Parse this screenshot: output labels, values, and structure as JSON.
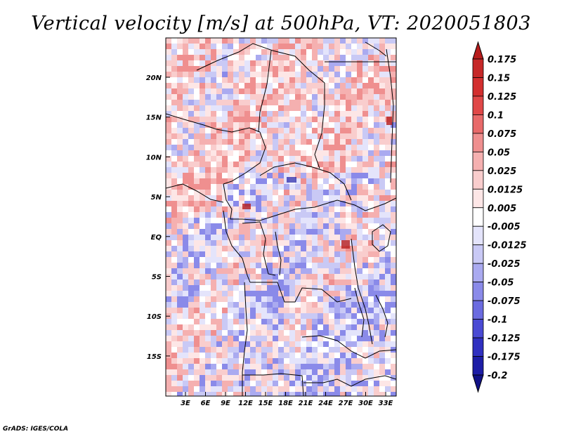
{
  "chart_data": {
    "type": "heatmap",
    "title": "Vertical velocity [m/s] at 500hPa, VT: 2020051803",
    "variable": "Vertical velocity",
    "units": "m/s",
    "level": "500hPa",
    "valid_time": "2020051803",
    "x_ticks": [
      "3E",
      "6E",
      "9E",
      "12E",
      "15E",
      "18E",
      "21E",
      "24E",
      "27E",
      "30E",
      "33E"
    ],
    "y_ticks": [
      "20N",
      "15N",
      "10N",
      "5N",
      "EQ",
      "5S",
      "10S",
      "15S"
    ],
    "colorbar": {
      "labels": [
        "0.175",
        "0.15",
        "0.125",
        "0.1",
        "0.075",
        "0.05",
        "0.025",
        "0.0125",
        "0.005",
        "-0.005",
        "-0.0125",
        "-0.025",
        "-0.05",
        "-0.075",
        "-0.1",
        "-0.125",
        "-0.175",
        "-0.2"
      ],
      "colors": [
        "#b71c1c",
        "#c62828",
        "#d32f2f",
        "#e04848",
        "#e86a6a",
        "#ef8f8f",
        "#f5b0b0",
        "#f9cdcd",
        "#fde6e6",
        "#ffffff",
        "#e4e4fb",
        "#c9c9f5",
        "#aaaaf0",
        "#8a8ae9",
        "#6b6be0",
        "#4a4ad4",
        "#3030c0",
        "#1d1da6",
        "#121287"
      ]
    },
    "field_summary": "mixed positive (red) and negative (blue) cells over Central Africa; strongest cores near 5N-8N, 20E-23E and near 1S, 29E"
  },
  "credit": "GrADS: IGES/COLA"
}
